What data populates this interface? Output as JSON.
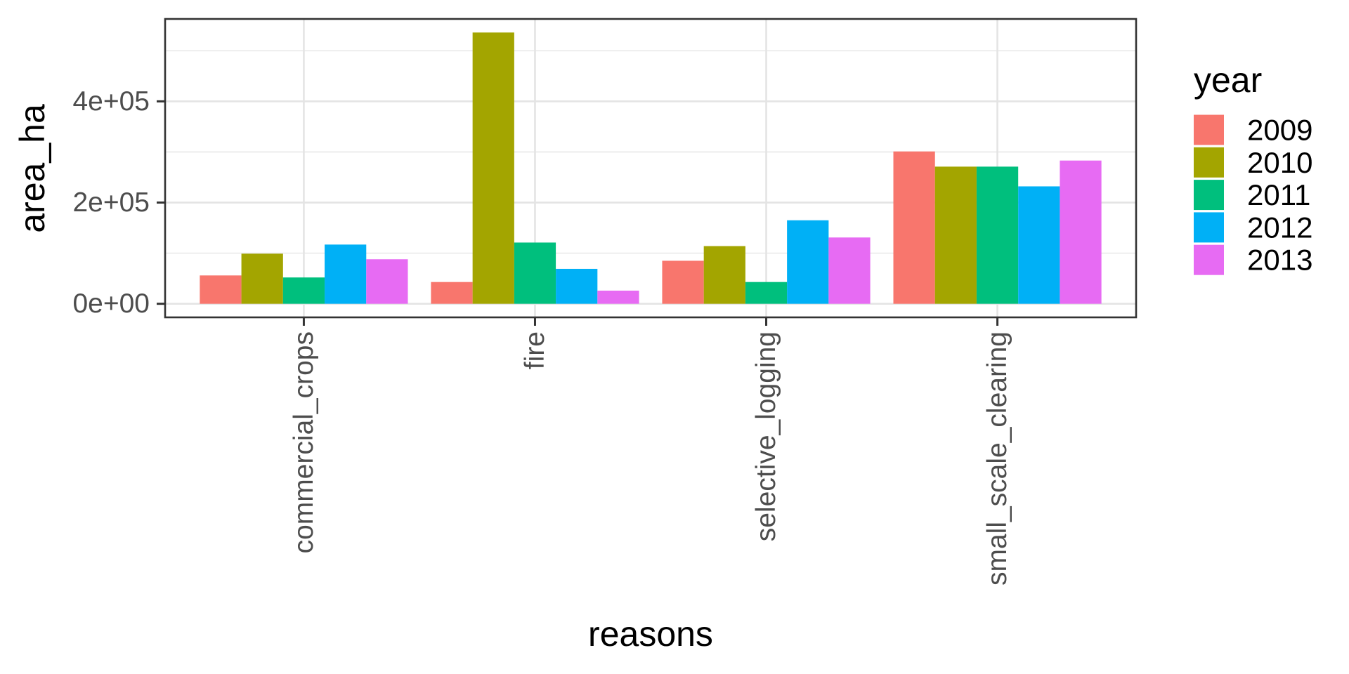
{
  "chart_data": {
    "type": "bar",
    "title": "",
    "xlabel": "reasons",
    "ylabel": "area_ha",
    "categories": [
      "commercial_crops",
      "fire",
      "selective_logging",
      "small_scale_clearing"
    ],
    "series": [
      {
        "name": "2009",
        "color": "#F8766D",
        "values": [
          56000,
          43000,
          85000,
          301000
        ]
      },
      {
        "name": "2010",
        "color": "#A3A500",
        "values": [
          99000,
          536000,
          114000,
          271000
        ]
      },
      {
        "name": "2011",
        "color": "#00BF7D",
        "values": [
          52000,
          121000,
          43000,
          271000
        ]
      },
      {
        "name": "2012",
        "color": "#00B0F6",
        "values": [
          117000,
          69000,
          165000,
          232000
        ]
      },
      {
        "name": "2013",
        "color": "#E76BF3",
        "values": [
          88000,
          26000,
          131000,
          283000
        ]
      }
    ],
    "legend": {
      "title": "year",
      "position": "right"
    },
    "y_axis": {
      "ticks": [
        0,
        200000,
        400000
      ],
      "tick_labels": [
        "0e+00",
        "2e+05",
        "4e+05"
      ],
      "minor_ticks": [
        100000,
        300000,
        500000
      ],
      "ylim": [
        -26800,
        562800
      ]
    },
    "x_axis": {
      "label_angle": 90
    },
    "grid": {
      "major_color": "#E4E4E4",
      "minor_color": "#EBEBEB"
    },
    "style": {
      "background": "#FFFFFF",
      "panel_border": "#333333",
      "tick_mark_color": "#333333",
      "tick_label_color": "#4D4D4D",
      "title_color": "#000000",
      "bar_group_fraction": 0.9
    }
  }
}
